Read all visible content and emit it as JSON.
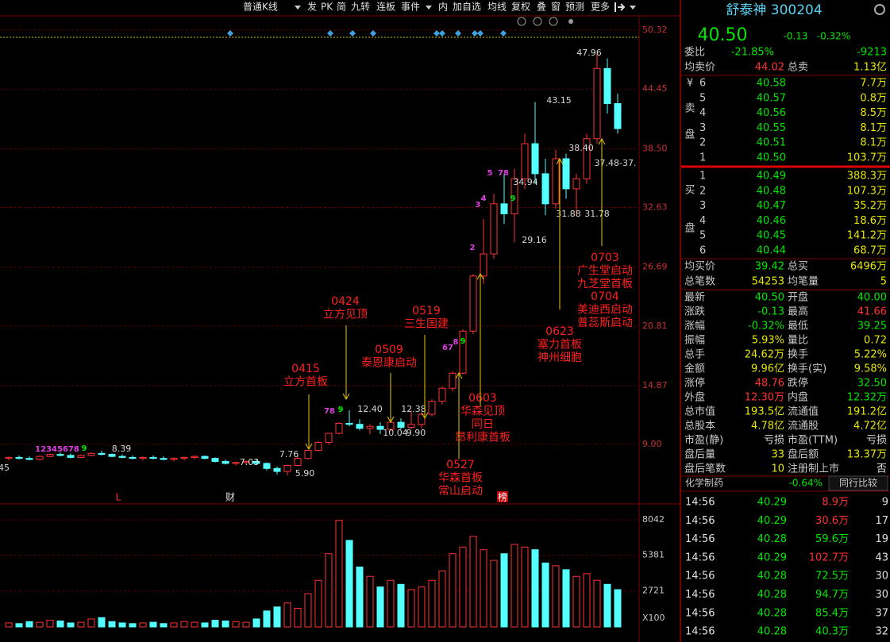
{
  "toolbar": {
    "items": [
      "普通K线",
      "发",
      "PK",
      "简",
      "九转",
      "连板",
      "事件",
      "内",
      "加自选",
      "均线",
      "复权",
      "叠",
      "窗",
      "预测",
      "更多"
    ]
  },
  "chart_data": {
    "type": "candlestick",
    "ylim": [
      3.06,
      51.75
    ],
    "yticks": [
      50.32,
      44.45,
      {
        "value": 38.5,
        "label": "38.50"
      },
      32.63,
      26.69,
      20.81,
      14.87,
      {
        "value": 9,
        "label": "9.00"
      }
    ],
    "grid": true,
    "up_color": "#ff3232",
    "down_color": "#54ffff",
    "open": [
      7.6,
      7.7,
      7.6,
      7.5,
      7.8,
      8.0,
      7.9,
      7.7,
      7.9,
      8.1,
      8.0,
      7.8,
      7.7,
      7.6,
      7.7,
      7.6,
      7.5,
      7.6,
      7.7,
      7.8,
      7.6,
      7.3,
      7.1,
      7.2,
      7.3,
      7.1,
      6.6,
      6.3,
      6.9,
      7.6,
      8.4,
      9.2,
      10.1,
      11.1,
      11.0,
      10.6,
      10.8,
      10.5,
      11.2,
      10.7,
      11.0,
      12.0,
      13.3,
      14.6,
      16.1,
      20.3,
      25.8,
      28.0,
      33.0,
      32.0,
      35.5,
      39.0,
      36.0,
      33.0,
      37.5,
      34.5,
      35.5,
      39.5,
      46.5,
      43.0
    ],
    "high": [
      7.8,
      7.9,
      7.8,
      7.9,
      8.1,
      8.2,
      8.1,
      8.0,
      8.2,
      8.39,
      8.1,
      8.0,
      7.9,
      7.8,
      7.9,
      7.8,
      7.7,
      7.8,
      7.9,
      7.9,
      7.7,
      7.5,
      7.3,
      7.4,
      7.5,
      7.2,
      6.8,
      7.0,
      7.8,
      8.4,
      9.3,
      10.1,
      11.2,
      12.4,
      11.5,
      11.0,
      11.2,
      11.4,
      11.6,
      12.38,
      12.2,
      13.5,
      14.8,
      16.3,
      20.5,
      26.0,
      31.5,
      34.0,
      36.0,
      36.5,
      40.0,
      43.15,
      37.5,
      38.4,
      38.0,
      36.0,
      40.0,
      47.96,
      47.5,
      44.0
    ],
    "low": [
      7.4,
      7.5,
      7.4,
      7.4,
      7.7,
      7.8,
      7.6,
      7.6,
      7.8,
      7.9,
      7.7,
      7.6,
      7.5,
      7.4,
      7.5,
      7.4,
      7.3,
      7.4,
      7.5,
      7.5,
      7.2,
      7.0,
      6.9,
      7.0,
      7.0,
      6.4,
      6.0,
      5.9,
      6.8,
      7.5,
      8.3,
      9.0,
      10.0,
      10.8,
      10.4,
      10.0,
      10.04,
      10.3,
      10.5,
      10.5,
      10.6,
      11.8,
      13.0,
      14.3,
      16.0,
      20.0,
      25.0,
      27.5,
      31.0,
      29.16,
      34.5,
      35.0,
      31.88,
      32.5,
      33.5,
      31.78,
      35.0,
      39.0,
      42.0,
      40.0
    ],
    "close": [
      7.7,
      7.6,
      7.5,
      7.8,
      8.0,
      7.9,
      7.7,
      7.9,
      8.1,
      8.0,
      7.8,
      7.7,
      7.6,
      7.7,
      7.6,
      7.5,
      7.6,
      7.7,
      7.8,
      7.6,
      7.3,
      7.1,
      7.2,
      7.3,
      7.1,
      6.6,
      6.3,
      6.9,
      7.6,
      8.4,
      9.2,
      10.1,
      11.1,
      11.0,
      10.6,
      10.8,
      10.5,
      11.2,
      10.7,
      11.0,
      12.0,
      13.3,
      14.6,
      16.1,
      20.3,
      25.8,
      28.0,
      33.0,
      32.0,
      35.5,
      39.0,
      36.0,
      33.0,
      37.5,
      34.5,
      35.5,
      39.5,
      46.5,
      43.0,
      40.5
    ],
    "volume": {
      "values": [
        300,
        250,
        400,
        350,
        500,
        450,
        300,
        350,
        600,
        700,
        400,
        300,
        250,
        300,
        350,
        250,
        300,
        400,
        350,
        300,
        500,
        450,
        400,
        350,
        600,
        1200,
        1500,
        1800,
        1400,
        2500,
        3500,
        5500,
        8000,
        6500,
        4500,
        3800,
        3000,
        3500,
        3200,
        2800,
        3000,
        3500,
        4200,
        5500,
        6000,
        6800,
        5800,
        5000,
        5500,
        6200,
        6000,
        5800,
        4800,
        4600,
        4300,
        3800,
        4000,
        3500,
        3200,
        2800
      ],
      "ylim": [
        0,
        8940
      ],
      "yticks": [
        8042,
        5381,
        2721
      ],
      "unit": "X100"
    },
    "price_labels": [
      "47.96",
      "43.15",
      "38.40",
      "34.94",
      "37.48-37.",
      "31.88",
      "31.78",
      "29.16",
      "12.40",
      "12.38",
      "10.04",
      "9.90",
      "8.39",
      "7.76",
      "7.03",
      "5.90",
      "45"
    ],
    "events": [
      [
        "0415",
        "立方首板"
      ],
      [
        "0424",
        "立方见顶"
      ],
      [
        "0509",
        "泰恩康启动"
      ],
      [
        "0519",
        "三生国建"
      ],
      [
        "0527",
        "华森首板",
        "常山启动"
      ],
      [
        "0603",
        "华森见顶",
        "同日",
        "昂利康首板"
      ],
      [
        "0623",
        "塞力首板",
        "神州细胞"
      ],
      [
        "0703",
        "广生堂启动",
        "九芝堂首板"
      ],
      [
        "0704",
        "美迪西启动",
        "普蕊斯启动"
      ]
    ],
    "nine_turn": [
      {
        "t": "12345678",
        "c": "#e040e0"
      },
      {
        "t": "9",
        "c": "#00e600"
      },
      {
        "t": "78",
        "c": "#e040e0"
      },
      {
        "t": "9",
        "c": "#00e600"
      },
      {
        "t": "67",
        "c": "#e040e0"
      },
      {
        "t": "8",
        "c": "#e040e0"
      },
      {
        "t": "9",
        "c": "#00e600"
      },
      {
        "t": "2",
        "c": "#e040e0"
      },
      {
        "t": "3",
        "c": "#e040e0"
      },
      {
        "t": "4",
        "c": "#e040e0"
      },
      {
        "t": "5",
        "c": "#e040e0"
      },
      {
        "t": "78",
        "c": "#e040e0"
      },
      {
        "t": "9",
        "c": "#00e600"
      }
    ],
    "markers": [
      "L",
      "财",
      "榜"
    ]
  },
  "quote": {
    "name": "舒泰神 300204",
    "price": "40.50",
    "change": "-0.13",
    "change_pct": "-0.32%",
    "color": "#00e600",
    "top": [
      [
        {
          "t": "委比"
        },
        {
          "t": "-21.85%",
          "c": "#00e600"
        },
        {
          "t": "-9213",
          "c": "#00e600"
        }
      ],
      [
        {
          "t": "均卖价"
        },
        {
          "t": "44.02",
          "c": "#ff3232"
        },
        {
          "t": "总卖"
        },
        {
          "t": "1.13亿",
          "c": "#e6e600"
        }
      ]
    ],
    "sell_side": [
      "¥",
      "卖",
      "盘"
    ],
    "sell": [
      [
        "6",
        "40.58",
        "7.7万"
      ],
      [
        "5",
        "40.57",
        "0.8万"
      ],
      [
        "4",
        "40.56",
        "8.5万"
      ],
      [
        "3",
        "40.55",
        "8.1万"
      ],
      [
        "2",
        "40.51",
        "8.1万"
      ],
      [
        "1",
        "40.50",
        "103.7万"
      ]
    ],
    "buy_side": [
      "买",
      "盘"
    ],
    "buy": [
      [
        "1",
        "40.49",
        "388.3万"
      ],
      [
        "2",
        "40.48",
        "107.3万"
      ],
      [
        "3",
        "40.47",
        "35.2万"
      ],
      [
        "4",
        "40.46",
        "18.6万"
      ],
      [
        "5",
        "40.45",
        "141.2万"
      ],
      [
        "6",
        "40.44",
        "68.7万"
      ]
    ],
    "mid": [
      [
        {
          "t": "均买价"
        },
        {
          "t": "39.42",
          "c": "#00e600"
        },
        {
          "t": "总买"
        },
        {
          "t": "6496万",
          "c": "#e6e600"
        }
      ],
      [
        {
          "t": "总笔数"
        },
        {
          "t": "54253",
          "c": "#e6e600"
        },
        {
          "t": "均笔量"
        },
        {
          "t": "5",
          "c": "#e6e600"
        }
      ]
    ],
    "stats": [
      [
        {
          "t": "最新"
        },
        {
          "t": "40.50",
          "c": "#00e600"
        },
        {
          "t": "开盘"
        },
        {
          "t": "40.00",
          "c": "#00e600"
        }
      ],
      [
        {
          "t": "涨跌"
        },
        {
          "t": "-0.13",
          "c": "#00e600"
        },
        {
          "t": "最高"
        },
        {
          "t": "41.66",
          "c": "#ff3232"
        }
      ],
      [
        {
          "t": "涨幅"
        },
        {
          "t": "-0.32%",
          "c": "#00e600"
        },
        {
          "t": "最低"
        },
        {
          "t": "39.25",
          "c": "#00e600"
        }
      ],
      [
        {
          "t": "振幅"
        },
        {
          "t": "5.93%",
          "c": "#e6e600"
        },
        {
          "t": "量比"
        },
        {
          "t": "0.72",
          "c": "#e6e600"
        }
      ],
      [
        {
          "t": "总手"
        },
        {
          "t": "24.62万",
          "c": "#e6e600"
        },
        {
          "t": "换手"
        },
        {
          "t": "5.22%",
          "c": "#e6e600"
        }
      ],
      [
        {
          "t": "金额"
        },
        {
          "t": "9.96亿",
          "c": "#e6e600"
        },
        {
          "t": "换手(实)"
        },
        {
          "t": "9.58%",
          "c": "#e6e600"
        }
      ],
      [
        {
          "t": "涨停"
        },
        {
          "t": "48.76",
          "c": "#ff3232"
        },
        {
          "t": "跌停"
        },
        {
          "t": "32.50",
          "c": "#00e600"
        }
      ],
      [
        {
          "t": "外盘"
        },
        {
          "t": "12.30万",
          "c": "#ff3232"
        },
        {
          "t": "内盘"
        },
        {
          "t": "12.32万",
          "c": "#00e600"
        }
      ],
      [
        {
          "t": "总市值"
        },
        {
          "t": "193.5亿",
          "c": "#e6e600"
        },
        {
          "t": "流通值"
        },
        {
          "t": "191.2亿",
          "c": "#e6e600"
        }
      ],
      [
        {
          "t": "总股本"
        },
        {
          "t": "4.78亿",
          "c": "#e6e600"
        },
        {
          "t": "流通股"
        },
        {
          "t": "4.72亿",
          "c": "#e6e600"
        }
      ],
      [
        {
          "t": "市盈(静)"
        },
        {
          "t": "亏损",
          "c": "#e0e0e0"
        },
        {
          "t": "市盈(TTM)"
        },
        {
          "t": "亏损",
          "c": "#e0e0e0"
        }
      ],
      [
        {
          "t": "盘后量"
        },
        {
          "t": "33",
          "c": "#e6e600"
        },
        {
          "t": "盘后额"
        },
        {
          "t": "13.37万",
          "c": "#e6e600"
        }
      ],
      [
        {
          "t": "盘后笔数"
        },
        {
          "t": "10",
          "c": "#e6e600"
        },
        {
          "t": "注册制上市"
        },
        {
          "t": "否",
          "c": "#e0e0e0"
        }
      ]
    ],
    "industry": {
      "name": "化学制药",
      "change": "-0.64%",
      "button": "同行比较"
    },
    "ticks": [
      [
        {
          "t": "14:56"
        },
        {
          "t": "40.29",
          "c": "#00e600"
        },
        {
          "t": "8.9万",
          "c": "#ff3232"
        },
        {
          "t": "9"
        }
      ],
      [
        {
          "t": "14:56"
        },
        {
          "t": "40.29",
          "c": "#00e600"
        },
        {
          "t": "30.6万",
          "c": "#ff3232"
        },
        {
          "t": "17"
        }
      ],
      [
        {
          "t": "14:56"
        },
        {
          "t": "40.28",
          "c": "#00e600"
        },
        {
          "t": "59.6万",
          "c": "#00e600"
        },
        {
          "t": "19"
        }
      ],
      [
        {
          "t": "14:56"
        },
        {
          "t": "40.29",
          "c": "#00e600"
        },
        {
          "t": "102.7万",
          "c": "#ff3232"
        },
        {
          "t": "43"
        }
      ],
      [
        {
          "t": "14:56"
        },
        {
          "t": "40.28",
          "c": "#00e600"
        },
        {
          "t": "72.5万",
          "c": "#00e600"
        },
        {
          "t": "30"
        }
      ],
      [
        {
          "t": "14:56"
        },
        {
          "t": "40.28",
          "c": "#00e600"
        },
        {
          "t": "94.7万",
          "c": "#00e600"
        },
        {
          "t": "30"
        }
      ],
      [
        {
          "t": "14:56"
        },
        {
          "t": "40.28",
          "c": "#00e600"
        },
        {
          "t": "85.4万",
          "c": "#00e600"
        },
        {
          "t": "37"
        }
      ],
      [
        {
          "t": "14:56"
        },
        {
          "t": "40.28",
          "c": "#00e600"
        },
        {
          "t": "40.3万",
          "c": "#00e600"
        },
        {
          "t": "32"
        }
      ]
    ]
  }
}
